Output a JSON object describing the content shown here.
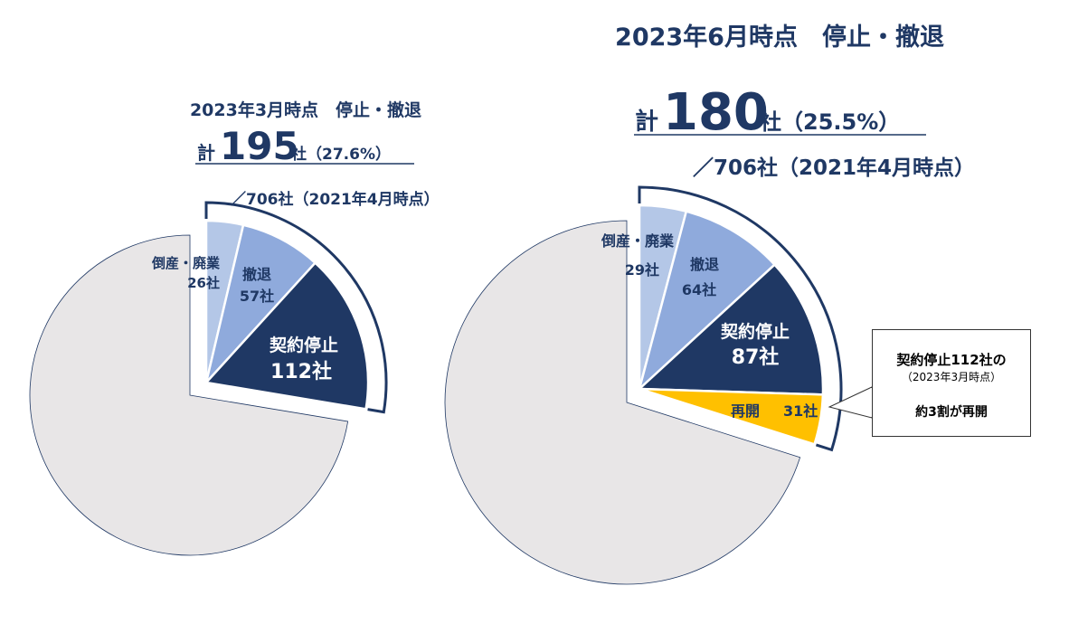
{
  "colors": {
    "text": "#1f3864",
    "remaining": "#e8e6e7",
    "bankruptcy": "#b4c7e7",
    "withdrawal": "#8faadc",
    "suspension": "#1f3864",
    "resumed": "#ffc000",
    "bracket": "#1f3864"
  },
  "left": {
    "title": "2023年3月時点　停止・撤退",
    "total_prefix": "計",
    "total_number": "195",
    "total_suffix": "社（27.6%）",
    "base": "／706社（2021年4月時点）"
  },
  "right": {
    "title": "2023年6月時点　停止・撤退",
    "total_prefix": "計",
    "total_number": "180",
    "total_suffix": "社（25.5%）",
    "base": "／706社（2021年4月時点）"
  },
  "callout": {
    "line1": "契約停止112社の",
    "line2": "（2023年3月時点）",
    "line3": "約3割が再開"
  },
  "chart_data": [
    {
      "type": "pie",
      "title": "2023年3月時点　停止・撤退",
      "total": 706,
      "slices": [
        {
          "key": "bankruptcy",
          "name": "倒産・廃業",
          "value": 26,
          "label_name": "倒産・廃業",
          "label_value": "26社"
        },
        {
          "key": "withdrawal",
          "name": "撤退",
          "value": 57,
          "label_name": "撤退",
          "label_value": "57社"
        },
        {
          "key": "suspension",
          "name": "契約停止",
          "value": 112,
          "label_name": "契約停止",
          "label_value": "112社"
        },
        {
          "key": "remaining",
          "name": "",
          "value": 511,
          "label_name": "",
          "label_value": ""
        }
      ]
    },
    {
      "type": "pie",
      "title": "2023年6月時点　停止・撤退",
      "total": 706,
      "slices": [
        {
          "key": "bankruptcy",
          "name": "倒産・廃業",
          "value": 29,
          "label_name": "倒産・廃業",
          "label_value": "29社"
        },
        {
          "key": "withdrawal",
          "name": "撤退",
          "value": 64,
          "label_name": "撤退",
          "label_value": "64社"
        },
        {
          "key": "suspension",
          "name": "契約停止",
          "value": 87,
          "label_name": "契約停止",
          "label_value": "87社"
        },
        {
          "key": "resumed",
          "name": "再開",
          "value": 31,
          "label_name": "再開",
          "label_value": "31社"
        },
        {
          "key": "remaining",
          "name": "",
          "value": 495,
          "label_name": "",
          "label_value": ""
        }
      ]
    }
  ]
}
